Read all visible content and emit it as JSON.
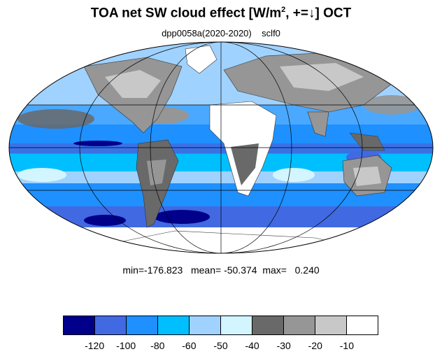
{
  "title": {
    "main": "TOA net SW cloud effect [W/m",
    "exponent": "2",
    "rest": ", +=↓]  OCT"
  },
  "subtitle": "dpp0058a(2020-2020)    sclf0",
  "stats": "min=-176.823   mean= -50.374  max=   0.240",
  "colorbar": {
    "colors": [
      "#00008b",
      "#4169e1",
      "#1e90ff",
      "#00bfff",
      "#a0d2ff",
      "#d2f5ff",
      "#696969",
      "#969696",
      "#c8c8c8",
      "#ffffff"
    ],
    "labels": [
      "-120",
      "-100",
      "-80",
      "-60",
      "-50",
      "-40",
      "-30",
      "-20",
      "-10"
    ]
  }
}
